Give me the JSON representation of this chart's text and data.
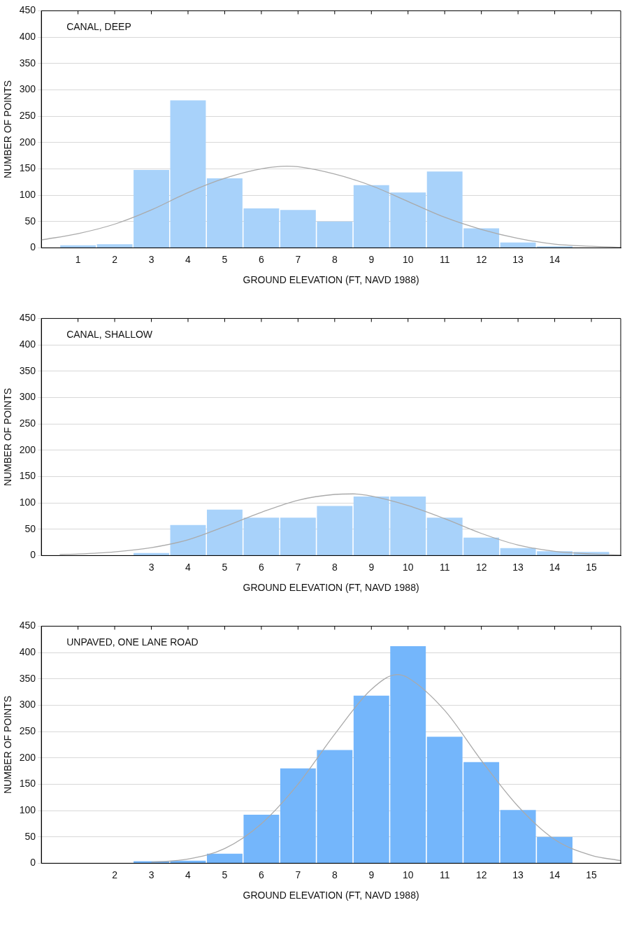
{
  "chart_data": [
    {
      "type": "histogram",
      "title": "CANAL, DEEP",
      "xlabel": "GROUND ELEVATION (FT, NAVD 1988)",
      "ylabel": "NUMBER OF POINTS",
      "bins": [
        0.5,
        1.5,
        2.5,
        3.5,
        4.5,
        5.5,
        6.5,
        7.5,
        8.5,
        9.5,
        10.5,
        11.5,
        12.5,
        13.5,
        14.5
      ],
      "values": [
        5,
        7,
        148,
        280,
        132,
        75,
        72,
        50,
        119,
        105,
        145,
        37,
        10,
        3
      ],
      "color": "#a8d2fa",
      "series": [
        {
          "type": "line",
          "color": "#aaaaaa",
          "x": [
            0,
            1,
            2,
            3,
            4,
            5,
            6,
            6.7,
            7,
            8,
            9,
            10,
            11,
            12,
            13,
            14,
            15,
            15.8
          ],
          "values": [
            15,
            27,
            45,
            72,
            105,
            132,
            150,
            155,
            154,
            140,
            118,
            88,
            58,
            35,
            18,
            7,
            3,
            1
          ]
        }
      ],
      "xlim": [
        0,
        15.8
      ],
      "xticks": [
        1,
        2,
        3,
        4,
        5,
        6,
        7,
        8,
        9,
        10,
        11,
        12,
        13,
        14,
        {
          "value": 15,
          "label": null
        }
      ],
      "ylim": [
        0,
        450
      ],
      "yticks": [
        0,
        50,
        100,
        150,
        200,
        250,
        300,
        350,
        400,
        450
      ],
      "grid": "y",
      "legend": false
    },
    {
      "type": "histogram",
      "title": "CANAL, SHALLOW",
      "xlabel": "GROUND ELEVATION (FT, NAVD 1988)",
      "ylabel": "NUMBER OF POINTS",
      "bins": [
        2.5,
        3.5,
        4.5,
        5.5,
        6.5,
        7.5,
        8.5,
        9.5,
        10.5,
        11.5,
        12.5,
        13.5,
        14.5,
        15.5
      ],
      "values": [
        5,
        58,
        87,
        72,
        72,
        94,
        112,
        112,
        72,
        34,
        14,
        8,
        7
      ],
      "color": "#a8d2fa",
      "series": [
        {
          "type": "line",
          "color": "#aaaaaa",
          "x": [
            0.5,
            1,
            2,
            3,
            4,
            5,
            6,
            7,
            8,
            8.5,
            9,
            10,
            11,
            12,
            13,
            14,
            15,
            15.8
          ],
          "values": [
            2,
            3,
            7,
            15,
            30,
            55,
            82,
            105,
            116,
            117,
            113,
            95,
            70,
            42,
            20,
            8,
            3,
            1
          ]
        }
      ],
      "xlim": [
        0,
        15.8
      ],
      "xticks": [
        {
          "value": 1,
          "label": null
        },
        {
          "value": 2,
          "label": null
        },
        3,
        4,
        5,
        6,
        7,
        8,
        9,
        10,
        11,
        12,
        13,
        14,
        15
      ],
      "ylim": [
        0,
        450
      ],
      "yticks": [
        0,
        50,
        100,
        150,
        200,
        250,
        300,
        350,
        400,
        450
      ],
      "grid": "y",
      "legend": false
    },
    {
      "type": "histogram",
      "title": "UNPAVED, ONE LANE ROAD",
      "xlabel": "GROUND ELEVATION (FT, NAVD 1988)",
      "ylabel": "NUMBER OF POINTS",
      "bins": [
        2.5,
        3.5,
        4.5,
        5.5,
        6.5,
        7.5,
        8.5,
        9.5,
        10.5,
        11.5,
        12.5,
        13.5,
        14.5
      ],
      "values": [
        4,
        5,
        18,
        92,
        180,
        215,
        318,
        412,
        240,
        192,
        101,
        50
      ],
      "color": "#74b6fb",
      "series": [
        {
          "type": "line",
          "color": "#aaaaaa",
          "x": [
            3,
            4,
            5,
            6,
            7,
            8,
            9,
            9.7,
            10,
            11,
            12,
            13,
            14,
            15,
            15.8
          ],
          "values": [
            2,
            8,
            28,
            75,
            150,
            245,
            330,
            358,
            352,
            290,
            195,
            108,
            45,
            15,
            5
          ]
        }
      ],
      "xlim": [
        0,
        15.8
      ],
      "xticks": [
        {
          "value": 1,
          "label": null
        },
        2,
        3,
        4,
        5,
        6,
        7,
        8,
        9,
        10,
        11,
        12,
        13,
        14,
        15
      ],
      "ylim": [
        0,
        450
      ],
      "yticks": [
        0,
        50,
        100,
        150,
        200,
        250,
        300,
        350,
        400,
        450
      ],
      "grid": "y",
      "legend": false
    }
  ]
}
